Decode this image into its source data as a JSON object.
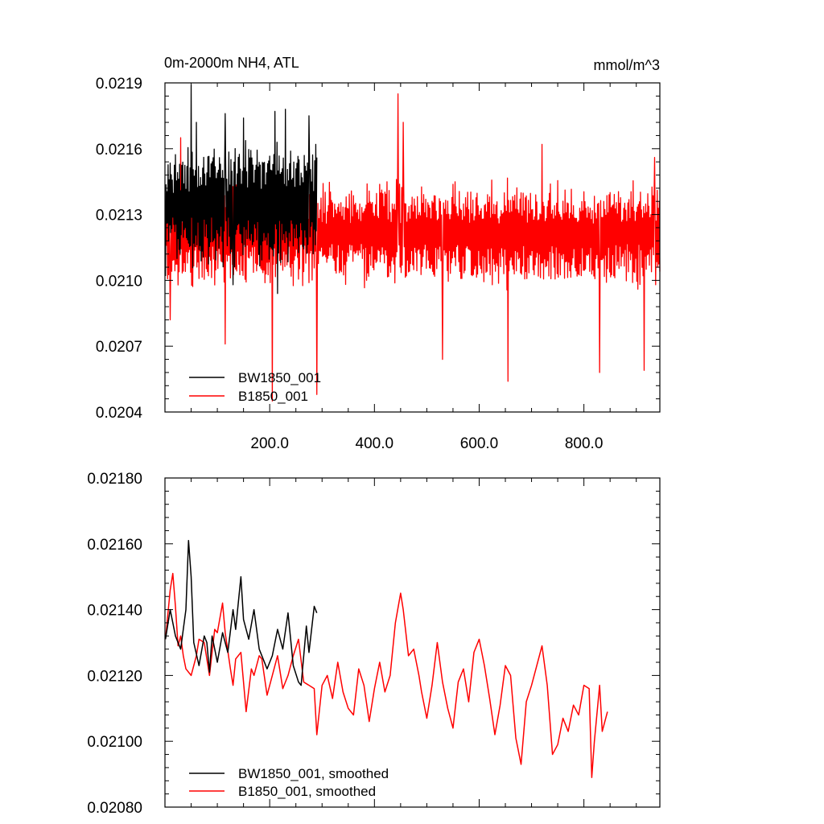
{
  "chart_data": [
    {
      "type": "line",
      "title": "0m-2000m NH4, ATL",
      "units": "mmol/m^3",
      "xlim": [
        0,
        945
      ],
      "ylim": [
        0.0204,
        0.0219
      ],
      "x_ticks": [
        200,
        400,
        600,
        800
      ],
      "x_tick_labels": [
        "200.0",
        "400.0",
        "600.0",
        "800.0"
      ],
      "y_ticks": [
        0.0204,
        0.0207,
        0.021,
        0.0213,
        0.0216,
        0.0219
      ],
      "y_tick_labels": [
        "0.0204",
        "0.0207",
        "0.0210",
        "0.0213",
        "0.0216",
        "0.0219"
      ],
      "grid": false,
      "legend": "bottom-left",
      "series": [
        {
          "name": "BW1850_001",
          "color": "#000000",
          "x_range": [
            1,
            290
          ],
          "mean": 0.02135,
          "amplitude": 0.0003,
          "extremes": [
            [
              1,
              0.02102
            ],
            [
              50,
              0.02189
            ],
            [
              60,
              0.02172
            ],
            [
              90,
              0.02154
            ],
            [
              115,
              0.02176
            ],
            [
              130,
              0.02098
            ],
            [
              150,
              0.02174
            ],
            [
              210,
              0.02177
            ],
            [
              215,
              0.02094
            ],
            [
              230,
              0.02178
            ],
            [
              275,
              0.02175
            ],
            [
              290,
              0.02156
            ]
          ]
        },
        {
          "name": "B1850_001",
          "color": "#ff0000",
          "x_range": [
            1,
            945
          ],
          "mean": 0.02121,
          "amplitude": 0.00026,
          "extremes": [
            [
              10,
              0.02082
            ],
            [
              30,
              0.02165
            ],
            [
              115,
              0.02071
            ],
            [
              205,
              0.02045
            ],
            [
              290,
              0.02048
            ],
            [
              445,
              0.02185
            ],
            [
              455,
              0.02172
            ],
            [
              530,
              0.02064
            ],
            [
              655,
              0.02054
            ],
            [
              720,
              0.02162
            ],
            [
              830,
              0.02058
            ],
            [
              915,
              0.02059
            ],
            [
              935,
              0.02156
            ],
            [
              945,
              0.02104
            ]
          ]
        }
      ]
    },
    {
      "type": "line",
      "xlim": [
        0,
        945
      ],
      "ylim": [
        0.0208,
        0.0218
      ],
      "y_ticks": [
        0.0208,
        0.021,
        0.0212,
        0.0214,
        0.0216,
        0.0218
      ],
      "y_tick_labels": [
        "0.02080",
        "0.02100",
        "0.02120",
        "0.02140",
        "0.02160",
        "0.02180"
      ],
      "grid": false,
      "legend": "bottom-left",
      "series": [
        {
          "name": "BW1850_001, smoothed",
          "color": "#000000",
          "points": [
            [
              1,
              0.02131
            ],
            [
              10,
              0.0214
            ],
            [
              20,
              0.02132
            ],
            [
              30,
              0.02128
            ],
            [
              40,
              0.0214
            ],
            [
              45,
              0.02161
            ],
            [
              50,
              0.0215
            ],
            [
              55,
              0.0213
            ],
            [
              65,
              0.02123
            ],
            [
              75,
              0.02132
            ],
            [
              80,
              0.0213
            ],
            [
              85,
              0.02121
            ],
            [
              90,
              0.02132
            ],
            [
              100,
              0.02124
            ],
            [
              110,
              0.02133
            ],
            [
              120,
              0.02127
            ],
            [
              130,
              0.0214
            ],
            [
              135,
              0.02134
            ],
            [
              145,
              0.0215
            ],
            [
              150,
              0.02137
            ],
            [
              160,
              0.02131
            ],
            [
              170,
              0.0214
            ],
            [
              180,
              0.02128
            ],
            [
              195,
              0.02122
            ],
            [
              205,
              0.02126
            ],
            [
              215,
              0.02134
            ],
            [
              225,
              0.02128
            ],
            [
              235,
              0.02139
            ],
            [
              245,
              0.02123
            ],
            [
              255,
              0.02118
            ],
            [
              260,
              0.02117
            ],
            [
              270,
              0.02135
            ],
            [
              275,
              0.02127
            ],
            [
              285,
              0.02141
            ],
            [
              290,
              0.02139
            ]
          ]
        },
        {
          "name": "B1850_001, smoothed",
          "color": "#ff0000",
          "points": [
            [
              1,
              0.02131
            ],
            [
              10,
              0.02146
            ],
            [
              15,
              0.02151
            ],
            [
              20,
              0.02141
            ],
            [
              25,
              0.02129
            ],
            [
              30,
              0.02132
            ],
            [
              35,
              0.02126
            ],
            [
              40,
              0.02122
            ],
            [
              50,
              0.0212
            ],
            [
              60,
              0.02126
            ],
            [
              65,
              0.02131
            ],
            [
              75,
              0.0213
            ],
            [
              85,
              0.0212
            ],
            [
              95,
              0.02134
            ],
            [
              100,
              0.02133
            ],
            [
              110,
              0.02142
            ],
            [
              115,
              0.02133
            ],
            [
              125,
              0.02122
            ],
            [
              130,
              0.02117
            ],
            [
              135,
              0.02125
            ],
            [
              145,
              0.02127
            ],
            [
              155,
              0.02109
            ],
            [
              165,
              0.02122
            ],
            [
              170,
              0.0212
            ],
            [
              180,
              0.02126
            ],
            [
              185,
              0.02125
            ],
            [
              195,
              0.02114
            ],
            [
              205,
              0.0212
            ],
            [
              215,
              0.02126
            ],
            [
              225,
              0.02116
            ],
            [
              235,
              0.0212
            ],
            [
              245,
              0.02126
            ],
            [
              255,
              0.02131
            ],
            [
              265,
              0.02118
            ],
            [
              275,
              0.02117
            ],
            [
              285,
              0.02116
            ],
            [
              290,
              0.02102
            ],
            [
              300,
              0.02117
            ],
            [
              310,
              0.0212
            ],
            [
              320,
              0.02113
            ],
            [
              330,
              0.02124
            ],
            [
              340,
              0.02115
            ],
            [
              350,
              0.0211
            ],
            [
              360,
              0.02108
            ],
            [
              370,
              0.02122
            ],
            [
              380,
              0.02117
            ],
            [
              390,
              0.02106
            ],
            [
              400,
              0.02116
            ],
            [
              410,
              0.02124
            ],
            [
              420,
              0.02115
            ],
            [
              430,
              0.0212
            ],
            [
              440,
              0.02136
            ],
            [
              450,
              0.02145
            ],
            [
              455,
              0.0214
            ],
            [
              465,
              0.02126
            ],
            [
              475,
              0.02128
            ],
            [
              485,
              0.0212
            ],
            [
              490,
              0.02115
            ],
            [
              500,
              0.02107
            ],
            [
              510,
              0.02117
            ],
            [
              520,
              0.0213
            ],
            [
              530,
              0.02118
            ],
            [
              540,
              0.0211
            ],
            [
              550,
              0.02104
            ],
            [
              560,
              0.02118
            ],
            [
              570,
              0.02122
            ],
            [
              580,
              0.02112
            ],
            [
              590,
              0.02127
            ],
            [
              600,
              0.02131
            ],
            [
              610,
              0.02123
            ],
            [
              620,
              0.02113
            ],
            [
              630,
              0.02102
            ],
            [
              640,
              0.02111
            ],
            [
              650,
              0.02123
            ],
            [
              660,
              0.0212
            ],
            [
              670,
              0.02101
            ],
            [
              680,
              0.02093
            ],
            [
              690,
              0.02112
            ],
            [
              700,
              0.02117
            ],
            [
              710,
              0.02123
            ],
            [
              720,
              0.02129
            ],
            [
              730,
              0.02117
            ],
            [
              740,
              0.02096
            ],
            [
              750,
              0.02099
            ],
            [
              760,
              0.02107
            ],
            [
              770,
              0.02103
            ],
            [
              780,
              0.02111
            ],
            [
              790,
              0.02108
            ],
            [
              800,
              0.02117
            ],
            [
              810,
              0.02116
            ],
            [
              815,
              0.02089
            ],
            [
              820,
              0.021
            ],
            [
              830,
              0.02117
            ],
            [
              835,
              0.02103
            ],
            [
              845,
              0.02109
            ]
          ]
        }
      ]
    }
  ]
}
